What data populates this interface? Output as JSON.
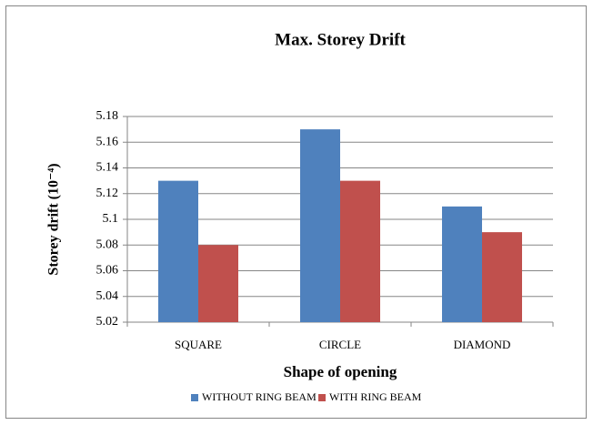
{
  "chart_data": {
    "type": "bar",
    "title": "Max. Storey Drift",
    "x_label": "Shape of opening",
    "y_label": "Storey drift (10⁻⁴)",
    "categories": [
      "SQUARE",
      "CIRCLE",
      "DIAMOND"
    ],
    "series": [
      {
        "name": "WITHOUT RING BEAM",
        "color": "#4f81bd",
        "values": [
          5.13,
          5.17,
          5.11
        ]
      },
      {
        "name": "WITH RING BEAM",
        "color": "#c0504d",
        "values": [
          5.08,
          5.13,
          5.09
        ]
      }
    ],
    "ylim": [
      5.02,
      5.18
    ],
    "yticks": [
      5.02,
      5.04,
      5.06,
      5.08,
      5.1,
      5.12,
      5.14,
      5.16,
      5.18
    ],
    "grid": true,
    "legend": "bottom"
  }
}
